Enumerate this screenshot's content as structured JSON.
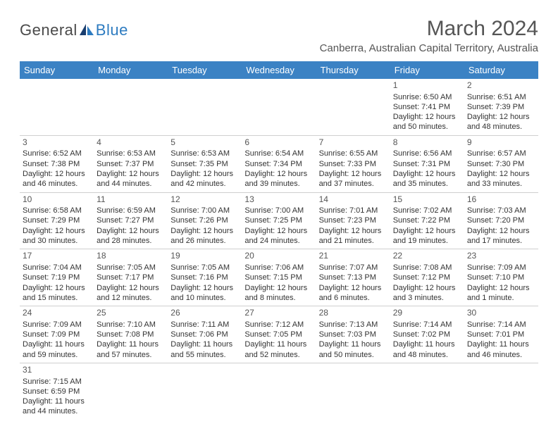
{
  "logo": {
    "text_general": "General",
    "text_blue": "Blue",
    "icon_color_dark": "#1a3e6f",
    "icon_color_light": "#2d7bc0"
  },
  "header": {
    "month_title": "March 2024",
    "location": "Canberra, Australian Capital Territory, Australia"
  },
  "colors": {
    "header_bg": "#3b82c4",
    "header_text": "#ffffff",
    "cell_border": "#cfcfcf",
    "body_text": "#333333",
    "title_text": "#555555"
  },
  "weekdays": [
    "Sunday",
    "Monday",
    "Tuesday",
    "Wednesday",
    "Thursday",
    "Friday",
    "Saturday"
  ],
  "weeks": [
    [
      null,
      null,
      null,
      null,
      null,
      {
        "n": "1",
        "sunrise": "6:50 AM",
        "sunset": "7:41 PM",
        "daylight": "12 hours and 50 minutes."
      },
      {
        "n": "2",
        "sunrise": "6:51 AM",
        "sunset": "7:39 PM",
        "daylight": "12 hours and 48 minutes."
      }
    ],
    [
      {
        "n": "3",
        "sunrise": "6:52 AM",
        "sunset": "7:38 PM",
        "daylight": "12 hours and 46 minutes."
      },
      {
        "n": "4",
        "sunrise": "6:53 AM",
        "sunset": "7:37 PM",
        "daylight": "12 hours and 44 minutes."
      },
      {
        "n": "5",
        "sunrise": "6:53 AM",
        "sunset": "7:35 PM",
        "daylight": "12 hours and 42 minutes."
      },
      {
        "n": "6",
        "sunrise": "6:54 AM",
        "sunset": "7:34 PM",
        "daylight": "12 hours and 39 minutes."
      },
      {
        "n": "7",
        "sunrise": "6:55 AM",
        "sunset": "7:33 PM",
        "daylight": "12 hours and 37 minutes."
      },
      {
        "n": "8",
        "sunrise": "6:56 AM",
        "sunset": "7:31 PM",
        "daylight": "12 hours and 35 minutes."
      },
      {
        "n": "9",
        "sunrise": "6:57 AM",
        "sunset": "7:30 PM",
        "daylight": "12 hours and 33 minutes."
      }
    ],
    [
      {
        "n": "10",
        "sunrise": "6:58 AM",
        "sunset": "7:29 PM",
        "daylight": "12 hours and 30 minutes."
      },
      {
        "n": "11",
        "sunrise": "6:59 AM",
        "sunset": "7:27 PM",
        "daylight": "12 hours and 28 minutes."
      },
      {
        "n": "12",
        "sunrise": "7:00 AM",
        "sunset": "7:26 PM",
        "daylight": "12 hours and 26 minutes."
      },
      {
        "n": "13",
        "sunrise": "7:00 AM",
        "sunset": "7:25 PM",
        "daylight": "12 hours and 24 minutes."
      },
      {
        "n": "14",
        "sunrise": "7:01 AM",
        "sunset": "7:23 PM",
        "daylight": "12 hours and 21 minutes."
      },
      {
        "n": "15",
        "sunrise": "7:02 AM",
        "sunset": "7:22 PM",
        "daylight": "12 hours and 19 minutes."
      },
      {
        "n": "16",
        "sunrise": "7:03 AM",
        "sunset": "7:20 PM",
        "daylight": "12 hours and 17 minutes."
      }
    ],
    [
      {
        "n": "17",
        "sunrise": "7:04 AM",
        "sunset": "7:19 PM",
        "daylight": "12 hours and 15 minutes."
      },
      {
        "n": "18",
        "sunrise": "7:05 AM",
        "sunset": "7:17 PM",
        "daylight": "12 hours and 12 minutes."
      },
      {
        "n": "19",
        "sunrise": "7:05 AM",
        "sunset": "7:16 PM",
        "daylight": "12 hours and 10 minutes."
      },
      {
        "n": "20",
        "sunrise": "7:06 AM",
        "sunset": "7:15 PM",
        "daylight": "12 hours and 8 minutes."
      },
      {
        "n": "21",
        "sunrise": "7:07 AM",
        "sunset": "7:13 PM",
        "daylight": "12 hours and 6 minutes."
      },
      {
        "n": "22",
        "sunrise": "7:08 AM",
        "sunset": "7:12 PM",
        "daylight": "12 hours and 3 minutes."
      },
      {
        "n": "23",
        "sunrise": "7:09 AM",
        "sunset": "7:10 PM",
        "daylight": "12 hours and 1 minute."
      }
    ],
    [
      {
        "n": "24",
        "sunrise": "7:09 AM",
        "sunset": "7:09 PM",
        "daylight": "11 hours and 59 minutes."
      },
      {
        "n": "25",
        "sunrise": "7:10 AM",
        "sunset": "7:08 PM",
        "daylight": "11 hours and 57 minutes."
      },
      {
        "n": "26",
        "sunrise": "7:11 AM",
        "sunset": "7:06 PM",
        "daylight": "11 hours and 55 minutes."
      },
      {
        "n": "27",
        "sunrise": "7:12 AM",
        "sunset": "7:05 PM",
        "daylight": "11 hours and 52 minutes."
      },
      {
        "n": "28",
        "sunrise": "7:13 AM",
        "sunset": "7:03 PM",
        "daylight": "11 hours and 50 minutes."
      },
      {
        "n": "29",
        "sunrise": "7:14 AM",
        "sunset": "7:02 PM",
        "daylight": "11 hours and 48 minutes."
      },
      {
        "n": "30",
        "sunrise": "7:14 AM",
        "sunset": "7:01 PM",
        "daylight": "11 hours and 46 minutes."
      }
    ],
    [
      {
        "n": "31",
        "sunrise": "7:15 AM",
        "sunset": "6:59 PM",
        "daylight": "11 hours and 44 minutes."
      },
      null,
      null,
      null,
      null,
      null,
      null
    ]
  ],
  "labels": {
    "sunrise": "Sunrise: ",
    "sunset": "Sunset: ",
    "daylight": "Daylight: "
  }
}
